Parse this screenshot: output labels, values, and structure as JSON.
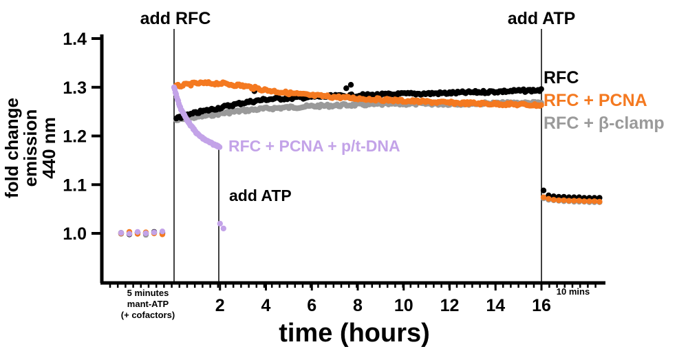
{
  "chart_data": {
    "type": "scatter",
    "ylabel": [
      "fold change",
      "emission",
      "440 nm"
    ],
    "xlabel": "time (hours)",
    "ylim": [
      0.9,
      1.4
    ],
    "yticks": [
      1.0,
      1.1,
      1.2,
      1.3,
      1.4
    ],
    "ytick_labels": [
      "1.0",
      "1.1",
      "1.2",
      "1.3",
      "1.4"
    ],
    "xlim": [
      0,
      16
    ],
    "xticks": [
      2,
      4,
      6,
      8,
      10,
      12,
      14,
      16
    ],
    "xtick_labels": [
      "2",
      "4",
      "6",
      "8",
      "10",
      "12",
      "14",
      "16"
    ],
    "segment_labels": {
      "pre": [
        "5 minutes",
        "mant-ATP",
        "(+ cofactors)"
      ],
      "post": "10 mins"
    },
    "annotations": {
      "add_rfc": "add RFC",
      "add_atp_main": "add ATP",
      "add_atp_purple": "add ATP"
    },
    "grid": false,
    "legend": "inline labels at right end of series",
    "colors": {
      "RFC": "#000000",
      "RFC + PCNA": "#f47920",
      "RFC + β-clamp": "#9a9a9a",
      "RFC + PCNA + p/t-DNA": "#c3a3e8"
    },
    "series": [
      {
        "name": "RFC",
        "color": "#000000",
        "pre_atp": [
          1.001,
          0.998,
          1.002,
          1.0,
          1.003,
          1.001
        ],
        "main": [
          [
            0.1,
            1.235
          ],
          [
            1,
            1.248
          ],
          [
            2,
            1.258
          ],
          [
            3,
            1.268
          ],
          [
            4,
            1.275
          ],
          [
            6,
            1.28
          ],
          [
            8,
            1.283
          ],
          [
            10,
            1.286
          ],
          [
            12,
            1.288
          ],
          [
            14,
            1.291
          ],
          [
            16,
            1.294
          ]
        ],
        "main_outliers": [
          [
            3.5,
            1.292
          ],
          [
            7.5,
            1.298
          ],
          [
            7.7,
            1.305
          ]
        ],
        "post_atp": [
          1.088,
          1.078,
          1.076,
          1.075,
          1.075,
          1.074,
          1.074,
          1.074,
          1.073,
          1.073,
          1.073,
          1.073
        ]
      },
      {
        "name": "RFC + PCNA",
        "color": "#f47920",
        "pre_atp": [
          1.0,
          1.003,
          0.999,
          1.002,
          1.0,
          0.998
        ],
        "main": [
          [
            0.1,
            1.302
          ],
          [
            1,
            1.308
          ],
          [
            2,
            1.308
          ],
          [
            3,
            1.303
          ],
          [
            4,
            1.294
          ],
          [
            5,
            1.288
          ],
          [
            6,
            1.283
          ],
          [
            8,
            1.277
          ],
          [
            10,
            1.272
          ],
          [
            12,
            1.268
          ],
          [
            14,
            1.266
          ],
          [
            16,
            1.263
          ]
        ],
        "post_atp": [
          1.074,
          1.071,
          1.069,
          1.068,
          1.068,
          1.067,
          1.067,
          1.067,
          1.066,
          1.066,
          1.066,
          1.065
        ]
      },
      {
        "name": "RFC + β-clamp",
        "color": "#9a9a9a",
        "pre_atp": [
          0.999,
          1.0,
          1.001,
          0.997,
          1.001,
          1.0
        ],
        "main": [
          [
            0.1,
            1.232
          ],
          [
            1,
            1.239
          ],
          [
            2,
            1.246
          ],
          [
            3,
            1.252
          ],
          [
            4,
            1.256
          ],
          [
            6,
            1.261
          ],
          [
            8,
            1.264
          ],
          [
            10,
            1.266
          ],
          [
            12,
            1.266
          ],
          [
            14,
            1.267
          ],
          [
            16,
            1.268
          ]
        ],
        "post_atp": [
          1.072,
          1.069,
          1.068,
          1.067,
          1.066,
          1.066,
          1.065,
          1.065,
          1.065,
          1.064,
          1.064,
          1.064
        ]
      },
      {
        "name": "RFC + PCNA + p/t-DNA",
        "color": "#c3a3e8",
        "pre_atp": [
          1.001,
          0.999,
          1.003,
          1.0,
          1.002,
          1.004
        ],
        "main": [
          [
            0.0,
            1.3
          ],
          [
            0.15,
            1.275
          ],
          [
            0.3,
            1.255
          ],
          [
            0.5,
            1.238
          ],
          [
            0.75,
            1.22
          ],
          [
            1.0,
            1.205
          ],
          [
            1.25,
            1.195
          ],
          [
            1.5,
            1.188
          ],
          [
            1.75,
            1.182
          ],
          [
            2.0,
            1.178
          ]
        ],
        "after_atp": [
          [
            2.0,
            1.02
          ],
          [
            2.15,
            1.01
          ]
        ]
      }
    ]
  }
}
